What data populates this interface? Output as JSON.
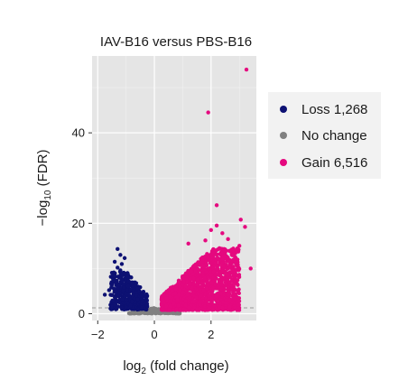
{
  "chart_data": {
    "type": "scatter",
    "title": "IAV-B16 versus PBS-B16",
    "xlabel": {
      "pre": "log",
      "sub": "2",
      "post": " (fold change)"
    },
    "ylabel": {
      "pre": "−log",
      "sub": "10",
      "post": " (FDR)"
    },
    "xlim": [
      -2.2,
      3.6
    ],
    "ylim": [
      -1.5,
      57
    ],
    "x_ticks": [
      {
        "value": -2,
        "label": "−2"
      },
      {
        "value": 0,
        "label": "0"
      },
      {
        "value": 2,
        "label": "2"
      }
    ],
    "y_ticks": [
      {
        "value": 0,
        "label": "0"
      },
      {
        "value": 20,
        "label": "20"
      },
      {
        "value": 40,
        "label": "40"
      }
    ],
    "threshold_line_y": 1.3,
    "grid": true,
    "legend_position": "right",
    "series": [
      {
        "name": "Loss 1,268",
        "color": "#0d1173",
        "cluster": {
          "count": 380,
          "x_range": [
            -1.55,
            -0.25
          ],
          "y_max": 9.5,
          "seed": 11
        },
        "points": [
          {
            "x": -1.3,
            "y": 14.3
          },
          {
            "x": -1.2,
            "y": 13.0
          },
          {
            "x": -1.05,
            "y": 12.3
          },
          {
            "x": -1.4,
            "y": 11.5
          },
          {
            "x": -1.15,
            "y": 11.0
          },
          {
            "x": -1.3,
            "y": 10.2
          },
          {
            "x": -1.75,
            "y": 4.2
          },
          {
            "x": -1.6,
            "y": 5.2
          },
          {
            "x": -1.5,
            "y": 6.6
          },
          {
            "x": -1.45,
            "y": 2.8
          },
          {
            "x": -1.2,
            "y": 9.6
          },
          {
            "x": -0.95,
            "y": 9.0
          }
        ]
      },
      {
        "name": "No change",
        "color": "#808080",
        "cluster": {
          "count": 260,
          "x_range": [
            -0.9,
            0.9
          ],
          "y_max": 1.2,
          "seed": 7
        },
        "points": []
      },
      {
        "name": "Gain 6,516",
        "color": "#e5097f",
        "cluster": {
          "count": 1400,
          "x_range": [
            0.25,
            3.0
          ],
          "y_max": 14.5,
          "seed": 23
        },
        "points": [
          {
            "x": 3.25,
            "y": 54.0
          },
          {
            "x": 1.9,
            "y": 44.5
          },
          {
            "x": 2.2,
            "y": 24.0
          },
          {
            "x": 3.05,
            "y": 20.8
          },
          {
            "x": 3.2,
            "y": 19.2
          },
          {
            "x": 2.0,
            "y": 18.5
          },
          {
            "x": 2.4,
            "y": 17.8
          },
          {
            "x": 2.2,
            "y": 19.5
          },
          {
            "x": 3.0,
            "y": 15.0
          },
          {
            "x": 2.8,
            "y": 14.2
          },
          {
            "x": 3.4,
            "y": 10.0
          },
          {
            "x": 2.6,
            "y": 16.5
          },
          {
            "x": 1.2,
            "y": 15.5
          },
          {
            "x": 1.8,
            "y": 16.2
          },
          {
            "x": 2.5,
            "y": 12.8
          }
        ]
      }
    ]
  }
}
